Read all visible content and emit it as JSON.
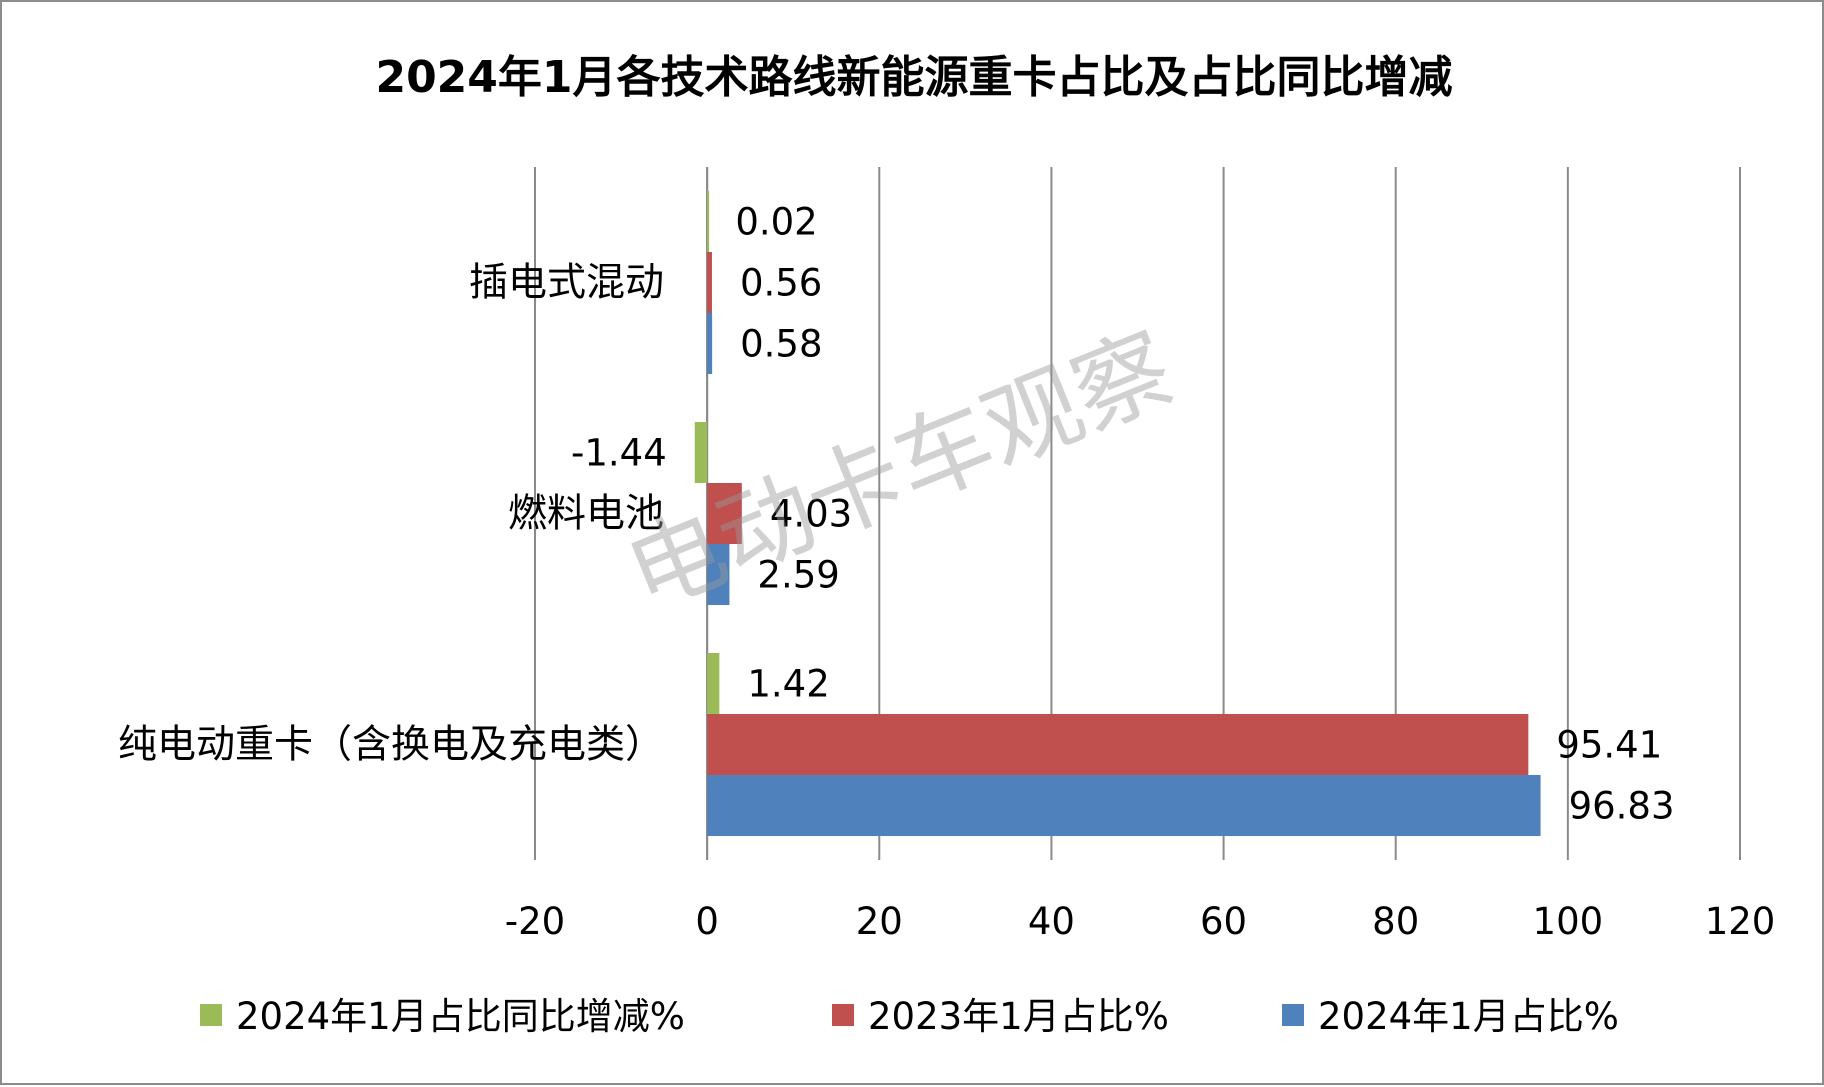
{
  "chart_data": {
    "type": "bar",
    "orientation": "horizontal",
    "title": "2024年1月各技术路线新能源重卡占比及占比同比增减",
    "categories": [
      "插电式混动",
      "燃料电池",
      "纯电动重卡（含换电及充电类）"
    ],
    "series": [
      {
        "name": "2024年1月占比同比增减%",
        "color": "#9BBB59",
        "values": [
          0.02,
          -1.44,
          1.42
        ],
        "labels": [
          "0.02",
          "-1.44",
          "1.42"
        ]
      },
      {
        "name": "2023年1月占比%",
        "color": "#C0504D",
        "values": [
          0.56,
          4.03,
          95.41
        ],
        "labels": [
          "0.56",
          "4.03",
          "95.41"
        ]
      },
      {
        "name": "2024年1月占比%",
        "color": "#4F81BD",
        "values": [
          0.58,
          2.59,
          96.83
        ],
        "labels": [
          "0.58",
          "2.59",
          "96.83"
        ]
      }
    ],
    "xlim": [
      -20,
      120
    ],
    "xticks": [
      "-20",
      "0",
      "20",
      "40",
      "60",
      "80",
      "100",
      "120"
    ],
    "grid": true,
    "legend_position": "bottom",
    "watermark": "电动卡车观察"
  }
}
